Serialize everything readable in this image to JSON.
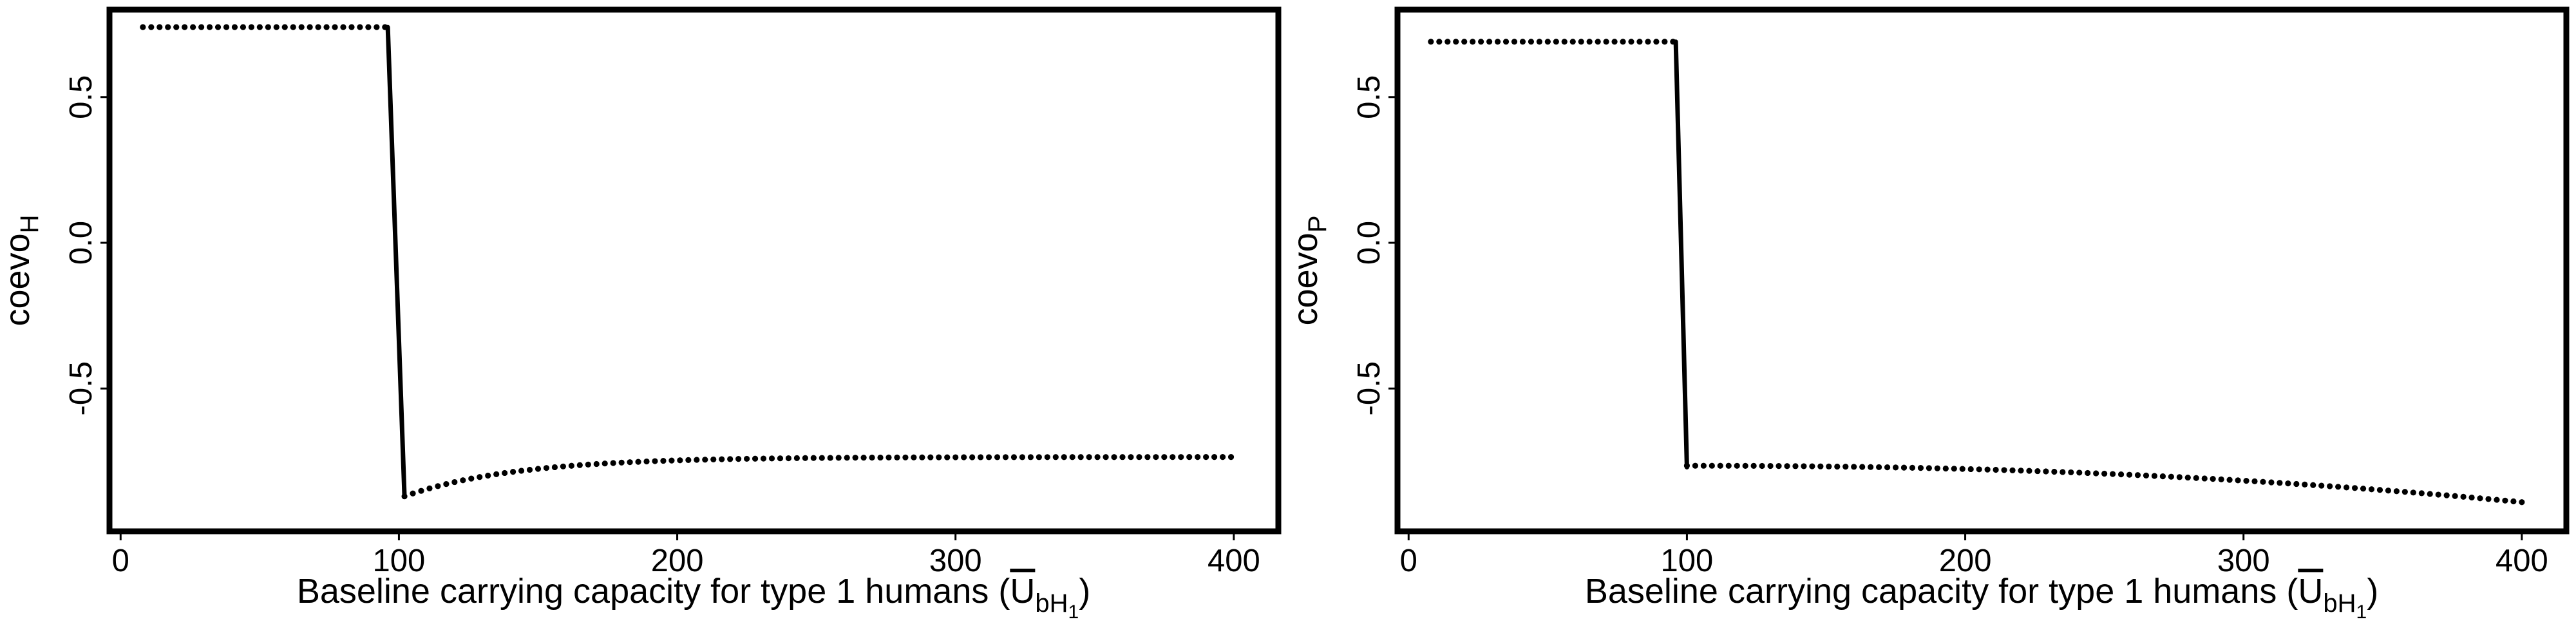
{
  "chart_data": [
    {
      "type": "line",
      "ylabel_main": "coevo",
      "ylabel_sub": "H",
      "xlabel_main": "Baseline carrying capacity for type 1 humans (",
      "xlabel_symbol": "U",
      "xlabel_sub": "bH",
      "xlabel_subsub": "1",
      "xlabel_close": ")",
      "xlim": [
        -4,
        416
      ],
      "ylim": [
        -0.99,
        0.8
      ],
      "x_ticks": [
        0,
        100,
        200,
        300,
        400
      ],
      "x_tick_labels": [
        "0",
        "100",
        "200",
        "300",
        "400"
      ],
      "y_ticks": [
        0.5,
        0.0,
        -0.5
      ],
      "y_tick_labels": [
        "0.5",
        "0.0",
        "-0.5"
      ],
      "grid": false,
      "series": [
        {
          "segments": [
            {
              "style": "dotted",
              "points": [
                [
                  8,
                  0.74
                ],
                [
                  96,
                  0.74
                ]
              ]
            },
            {
              "style": "solid",
              "points": [
                [
                  96,
                  0.74
                ],
                [
                  102,
                  -0.87
                ]
              ]
            },
            {
              "style": "dotted",
              "curve": "recover",
              "x_start": 102,
              "x_end": 400,
              "y_start": -0.87,
              "y_end": -0.735,
              "rate": 40
            }
          ]
        }
      ]
    },
    {
      "type": "line",
      "ylabel_main": "coevo",
      "ylabel_sub": "P",
      "xlabel_main": "Baseline carrying capacity for type 1 humans (",
      "xlabel_symbol": "U",
      "xlabel_sub": "bH",
      "xlabel_subsub": "1",
      "xlabel_close": ")",
      "xlim": [
        -4,
        416
      ],
      "ylim": [
        -0.99,
        0.8
      ],
      "x_ticks": [
        0,
        100,
        200,
        300,
        400
      ],
      "x_tick_labels": [
        "0",
        "100",
        "200",
        "300",
        "400"
      ],
      "y_ticks": [
        0.5,
        0.0,
        -0.5
      ],
      "y_tick_labels": [
        "0.5",
        "0.0",
        "-0.5"
      ],
      "grid": false,
      "series": [
        {
          "segments": [
            {
              "style": "dotted",
              "points": [
                [
                  8,
                  0.69
                ],
                [
                  96,
                  0.69
                ]
              ]
            },
            {
              "style": "solid",
              "points": [
                [
                  96,
                  0.69
                ],
                [
                  100,
                  -0.77
                ]
              ]
            },
            {
              "style": "dotted",
              "curve": "decline",
              "x_start": 100,
              "x_end": 400,
              "y_start": -0.765,
              "y_end": -0.89,
              "power": 2.2
            }
          ]
        }
      ]
    }
  ]
}
